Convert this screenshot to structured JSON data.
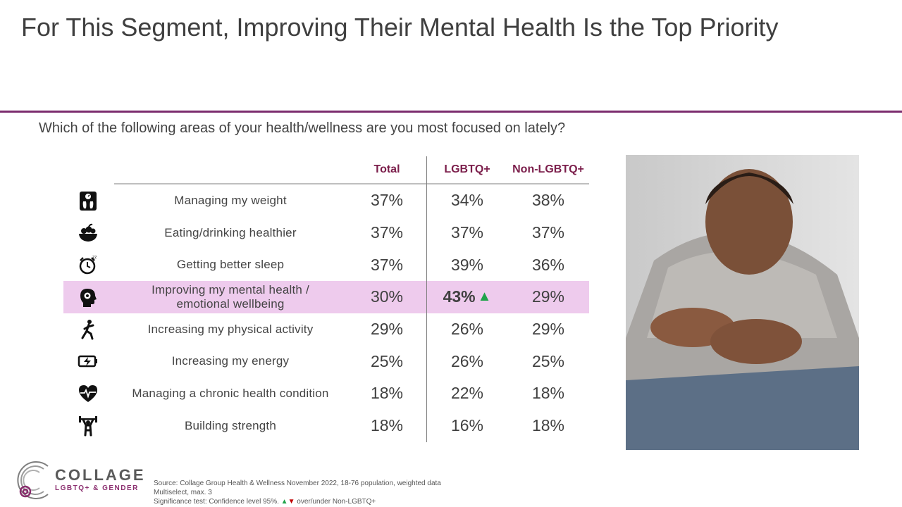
{
  "title": "For This Segment, Improving Their Mental Health Is the Top Priority",
  "question": "Which of the following areas of your health/wellness are you most focused on lately?",
  "chart_data": {
    "type": "table",
    "columns": [
      "Total",
      "LGBTQ+",
      "Non-LGBTQ+"
    ],
    "rows": [
      {
        "label": "Managing my weight",
        "icon": "scale-icon",
        "values": [
          "37%",
          "34%",
          "38%"
        ]
      },
      {
        "label": "Eating/drinking healthier",
        "icon": "fruit-bowl-icon",
        "values": [
          "37%",
          "37%",
          "37%"
        ]
      },
      {
        "label": "Getting better sleep",
        "icon": "alarm-clock-icon",
        "values": [
          "37%",
          "39%",
          "36%"
        ]
      },
      {
        "label": "Improving my mental health / emotional wellbeing",
        "icon": "head-brain-icon",
        "values": [
          "30%",
          "43%",
          "29%"
        ],
        "highlight": true,
        "significant_up": "LGBTQ+"
      },
      {
        "label": "Increasing my physical activity",
        "icon": "running-person-icon",
        "values": [
          "29%",
          "26%",
          "29%"
        ]
      },
      {
        "label": "Increasing my energy",
        "icon": "battery-charging-icon",
        "values": [
          "25%",
          "26%",
          "25%"
        ]
      },
      {
        "label": "Managing a chronic health condition",
        "icon": "heart-pulse-icon",
        "values": [
          "18%",
          "22%",
          "18%"
        ]
      },
      {
        "label": "Building strength",
        "icon": "weightlifter-icon",
        "values": [
          "18%",
          "16%",
          "18%"
        ]
      }
    ]
  },
  "up_marker": "▲",
  "logo": {
    "name": "COLLAGE",
    "sub": "LGBTQ+ & GENDER"
  },
  "notes": {
    "source": "Source: Collage Group Health & Wellness November 2022, 18-76 population, weighted data",
    "multiselect": "Multiselect, max. 3",
    "sig_prefix": "Significance test: Confidence level 95%.",
    "sig_up": "▲",
    "sig_down": "▼",
    "sig_suffix": "over/under Non-LGBTQ+"
  },
  "colors": {
    "accent": "#7b2c6e",
    "header": "#7b1e4b",
    "highlight": "#eecbed",
    "up": "#1fa34a",
    "down": "#c00000"
  }
}
